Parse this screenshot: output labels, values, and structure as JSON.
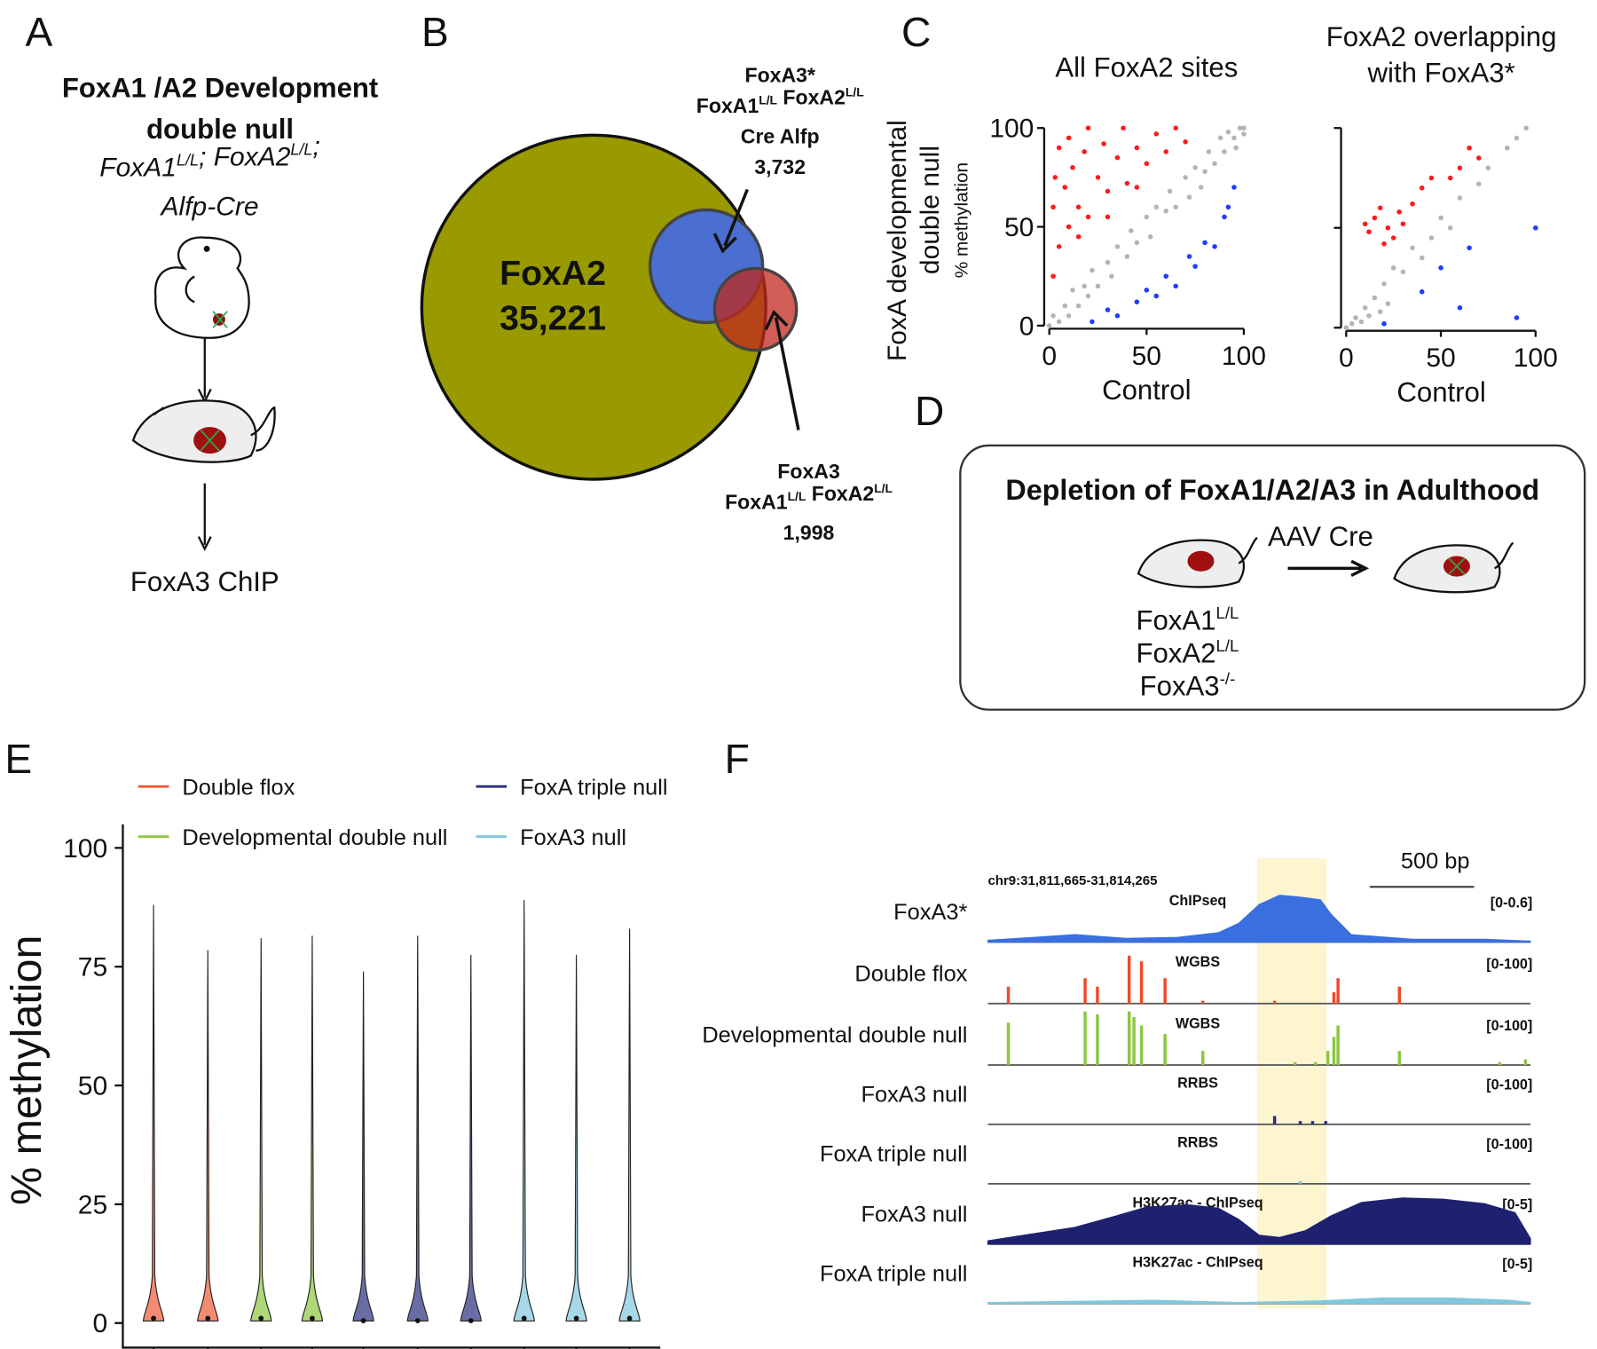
{
  "panels": {
    "a": {
      "label": "A",
      "title": [
        "FoxA1 /A2 Development",
        "double null"
      ],
      "genotype": [
        [
          {
            "text": "FoxA1",
            "sup": "L/L"
          },
          {
            "text": "; FoxA2",
            "sup": "L/L"
          },
          {
            "text": ";"
          }
        ],
        [
          {
            "text": "Alfp-Cre"
          }
        ]
      ],
      "readout": "FoxA3 ChIP"
    },
    "b": {
      "label": "B",
      "main": [
        "FoxA2",
        "35,221"
      ],
      "top": [
        [
          {
            "text": "FoxA3*"
          }
        ],
        [
          {
            "text": "FoxA1",
            "sup": "L/L"
          },
          {
            "text": " FoxA2",
            "sup": "L/L"
          }
        ],
        [
          {
            "text": "Cre Alfp"
          }
        ],
        [
          {
            "text": "3,732"
          }
        ]
      ],
      "bottom": [
        [
          {
            "text": "FoxA3"
          }
        ],
        [
          {
            "text": "FoxA1",
            "sup": "L/L"
          },
          {
            "text": " FoxA2",
            "sup": "L/L"
          }
        ],
        [
          {
            "text": "1,998"
          }
        ]
      ]
    },
    "c": {
      "label": "C",
      "y_label": [
        "FoxA developmental",
        "double null"
      ],
      "y_sub": "% methylation",
      "plots": [
        {
          "title": [
            "All FoxA2 sites"
          ],
          "x_label": "Control",
          "xlim": [
            0,
            100
          ],
          "ylim": [
            0,
            100
          ],
          "xticks": [
            0,
            50,
            100
          ],
          "yticks": [
            0,
            50,
            100
          ],
          "ytick_labels": true,
          "groups": [
            {
              "color": "#ff1a1a",
              "points": [
                [
                  2,
                  60
                ],
                [
                  3,
                  75
                ],
                [
                  5,
                  90
                ],
                [
                  8,
                  70
                ],
                [
                  10,
                  95
                ],
                [
                  12,
                  80
                ],
                [
                  15,
                  60
                ],
                [
                  18,
                  88
                ],
                [
                  20,
                  100
                ],
                [
                  25,
                  75
                ],
                [
                  28,
                  92
                ],
                [
                  30,
                  68
                ],
                [
                  35,
                  85
                ],
                [
                  38,
                  100
                ],
                [
                  40,
                  72
                ],
                [
                  45,
                  90
                ],
                [
                  50,
                  82
                ],
                [
                  55,
                  97
                ],
                [
                  60,
                  88
                ],
                [
                  65,
                  100
                ],
                [
                  70,
                  93
                ],
                [
                  5,
                  40
                ],
                [
                  10,
                  50
                ],
                [
                  20,
                  55
                ],
                [
                  2,
                  25
                ],
                [
                  15,
                  45
                ],
                [
                  30,
                  55
                ],
                [
                  45,
                  70
                ]
              ]
            },
            {
              "color": "#b4b4b4",
              "points": [
                [
                  0,
                  0
                ],
                [
                  2,
                  5
                ],
                [
                  5,
                  2
                ],
                [
                  8,
                  10
                ],
                [
                  10,
                  5
                ],
                [
                  12,
                  18
                ],
                [
                  15,
                  10
                ],
                [
                  18,
                  20
                ],
                [
                  20,
                  15
                ],
                [
                  22,
                  28
                ],
                [
                  25,
                  20
                ],
                [
                  30,
                  32
                ],
                [
                  32,
                  25
                ],
                [
                  35,
                  40
                ],
                [
                  40,
                  35
                ],
                [
                  42,
                  48
                ],
                [
                  45,
                  42
                ],
                [
                  50,
                  55
                ],
                [
                  52,
                  45
                ],
                [
                  55,
                  60
                ],
                [
                  60,
                  58
                ],
                [
                  62,
                  68
                ],
                [
                  65,
                  60
                ],
                [
                  70,
                  75
                ],
                [
                  72,
                  65
                ],
                [
                  75,
                  80
                ],
                [
                  80,
                  78
                ],
                [
                  82,
                  88
                ],
                [
                  85,
                  82
                ],
                [
                  88,
                  95
                ],
                [
                  90,
                  88
                ],
                [
                  92,
                  98
                ],
                [
                  95,
                  95
                ],
                [
                  98,
                  100
                ],
                [
                  100,
                  97
                ],
                [
                  100,
                  100
                ],
                [
                  96,
                  90
                ],
                [
                  78,
                  70
                ]
              ]
            },
            {
              "color": "#1f3cff",
              "points": [
                [
                  22,
                  2
                ],
                [
                  30,
                  8
                ],
                [
                  35,
                  5
                ],
                [
                  45,
                  12
                ],
                [
                  50,
                  18
                ],
                [
                  55,
                  15
                ],
                [
                  60,
                  25
                ],
                [
                  65,
                  20
                ],
                [
                  72,
                  35
                ],
                [
                  75,
                  30
                ],
                [
                  80,
                  42
                ],
                [
                  85,
                  40
                ],
                [
                  90,
                  55
                ],
                [
                  92,
                  60
                ],
                [
                  95,
                  70
                ]
              ]
            }
          ]
        },
        {
          "title": [
            "FoxA2 overlapping",
            "with FoxA3*"
          ],
          "x_label": "Control",
          "xlim": [
            0,
            100
          ],
          "ylim": [
            0,
            100
          ],
          "xticks": [
            0,
            50,
            100
          ],
          "yticks": [
            0,
            50,
            100
          ],
          "ytick_labels": false,
          "groups": [
            {
              "color": "#ff1a1a",
              "points": [
                [
                  10,
                  52
                ],
                [
                  12,
                  48
                ],
                [
                  15,
                  55
                ],
                [
                  18,
                  60
                ],
                [
                  20,
                  42
                ],
                [
                  22,
                  50
                ],
                [
                  25,
                  45
                ],
                [
                  28,
                  58
                ],
                [
                  30,
                  52
                ],
                [
                  35,
                  62
                ],
                [
                  40,
                  70
                ],
                [
                  45,
                  75
                ],
                [
                  55,
                  75
                ],
                [
                  60,
                  80
                ],
                [
                  65,
                  90
                ],
                [
                  70,
                  85
                ]
              ]
            },
            {
              "color": "#b4b4b4",
              "points": [
                [
                  0,
                  0
                ],
                [
                  3,
                  2
                ],
                [
                  5,
                  5
                ],
                [
                  8,
                  3
                ],
                [
                  10,
                  10
                ],
                [
                  12,
                  6
                ],
                [
                  15,
                  15
                ],
                [
                  18,
                  8
                ],
                [
                  20,
                  22
                ],
                [
                  22,
                  12
                ],
                [
                  25,
                  30
                ],
                [
                  30,
                  28
                ],
                [
                  35,
                  40
                ],
                [
                  40,
                  35
                ],
                [
                  45,
                  45
                ],
                [
                  50,
                  55
                ],
                [
                  55,
                  50
                ],
                [
                  60,
                  65
                ],
                [
                  70,
                  72
                ],
                [
                  75,
                  80
                ],
                [
                  85,
                  90
                ],
                [
                  90,
                  95
                ],
                [
                  95,
                  100
                ]
              ]
            },
            {
              "color": "#1f3cff",
              "points": [
                [
                  20,
                  2
                ],
                [
                  40,
                  18
                ],
                [
                  50,
                  30
                ],
                [
                  60,
                  10
                ],
                [
                  65,
                  40
                ],
                [
                  90,
                  5
                ],
                [
                  100,
                  50
                ]
              ]
            }
          ]
        }
      ]
    },
    "d": {
      "label": "D",
      "title": "Depletion of FoxA1/A2/A3 in Adulthood",
      "treatment": "AAV Cre",
      "genotype": [
        [
          {
            "text": "FoxA1",
            "sup": "L/L"
          }
        ],
        [
          {
            "text": "FoxA2",
            "sup": "L/L"
          }
        ],
        [
          {
            "text": "FoxA3",
            "sup": "-/-"
          }
        ]
      ]
    },
    "e": {
      "label": "E",
      "y_label": "% methylation",
      "ylim": [
        0,
        100
      ],
      "yticks": [
        0,
        25,
        50,
        75,
        100
      ],
      "series": [
        {
          "name": "Double flox",
          "color": "#ee5a36"
        },
        {
          "name": "Developmental double null",
          "color": "#8dc63f"
        },
        {
          "name": "FoxA triple null",
          "color": "#2b2f7e"
        },
        {
          "name": "FoxA3 null",
          "color": "#80c8e0"
        }
      ],
      "violin_series": [
        0,
        0,
        1,
        1,
        2,
        2,
        2,
        3,
        3,
        3
      ],
      "max": [
        88,
        78.5,
        81,
        81.5,
        74,
        81.5,
        77.5,
        89,
        77.5,
        83
      ],
      "median": [
        1,
        1,
        1,
        1,
        0.5,
        0.5,
        0.5,
        1,
        1,
        1
      ]
    },
    "f": {
      "label": "F",
      "locus": "chr9:31,811,665-31,814,265",
      "scale_bar": "500 bp",
      "scale_bar_bp": 500,
      "span_bp": 2600,
      "highlight": [
        1290,
        1623
      ],
      "tracks": [
        {
          "label": "FoxA3*",
          "assay": "ChIPseq",
          "range": "[0-0.6]",
          "ymax": 0.6,
          "style": "area",
          "color": "#3a6fe0",
          "x": [
            0,
            221,
            417,
            662,
            908,
            1104,
            1202,
            1300,
            1398,
            1496,
            1594,
            1643,
            1741,
            2036,
            2379,
            2600
          ],
          "values": [
            0.02,
            0.05,
            0.08,
            0.04,
            0.05,
            0.1,
            0.2,
            0.4,
            0.5,
            0.48,
            0.45,
            0.3,
            0.08,
            0.03,
            0.03,
            0.01
          ]
        },
        {
          "label": "Double flox",
          "assay": "WGBS",
          "range": "[0-100]",
          "ymax": 100,
          "style": "bars",
          "color": "#ee4a2a",
          "x": [
            98,
            466,
            525,
            677,
            736,
            849,
            1030,
            1374,
            1658,
            1678,
            1972
          ],
          "values": [
            30,
            45,
            30,
            85,
            75,
            45,
            5,
            5,
            20,
            45,
            30
          ]
        },
        {
          "label": "Developmental double null",
          "assay": "WGBS",
          "range": "[0-100]",
          "ymax": 100,
          "style": "bars",
          "color": "#8dc63f",
          "x": [
            98,
            466,
            525,
            677,
            700,
            736,
            849,
            1030,
            1472,
            1570,
            1629,
            1658,
            1678,
            1972,
            2453,
            2576
          ],
          "values": [
            75,
            95,
            90,
            95,
            85,
            70,
            55,
            25,
            5,
            5,
            25,
            50,
            70,
            25,
            5,
            10
          ]
        },
        {
          "label": "FoxA3 null",
          "assay": "RRBS",
          "range": "[0-100]",
          "ymax": 100,
          "style": "bars",
          "color": "#2b2f7e",
          "x": [
            1374,
            1497,
            1556,
            1619
          ],
          "values": [
            15,
            6,
            6,
            6
          ]
        },
        {
          "label": "FoxA triple null",
          "assay": "RRBS",
          "range": "[0-100]",
          "ymax": 100,
          "style": "bars",
          "color": "#80c8e0",
          "x": [
            1497
          ],
          "values": [
            5
          ]
        },
        {
          "label": "FoxA3 null",
          "assay": "H3K27ac - ChIPseq",
          "range": "[0-5]",
          "ymax": 5,
          "style": "area",
          "color": "#1e2170",
          "x": [
            0,
            172,
            417,
            613,
            760,
            957,
            1104,
            1202,
            1300,
            1398,
            1521,
            1643,
            1790,
            1987,
            2183,
            2379,
            2526,
            2600
          ],
          "values": [
            0.3,
            0.8,
            1.5,
            2.5,
            3.3,
            3.5,
            3.2,
            2.2,
            0.8,
            0.6,
            1.2,
            2.5,
            3.7,
            4.1,
            4,
            3.6,
            2.8,
            0.5
          ]
        },
        {
          "label": "FoxA triple null",
          "assay": "H3K27ac - ChIPseq",
          "range": "[0-5]",
          "ymax": 5,
          "style": "area",
          "color": "#80c8e0",
          "x": [
            0,
            400,
            800,
            1200,
            1600,
            1900,
            2200,
            2500,
            2600
          ],
          "values": [
            0.1,
            0.2,
            0.3,
            0.1,
            0.25,
            0.5,
            0.5,
            0.3,
            0.1
          ]
        }
      ]
    }
  }
}
